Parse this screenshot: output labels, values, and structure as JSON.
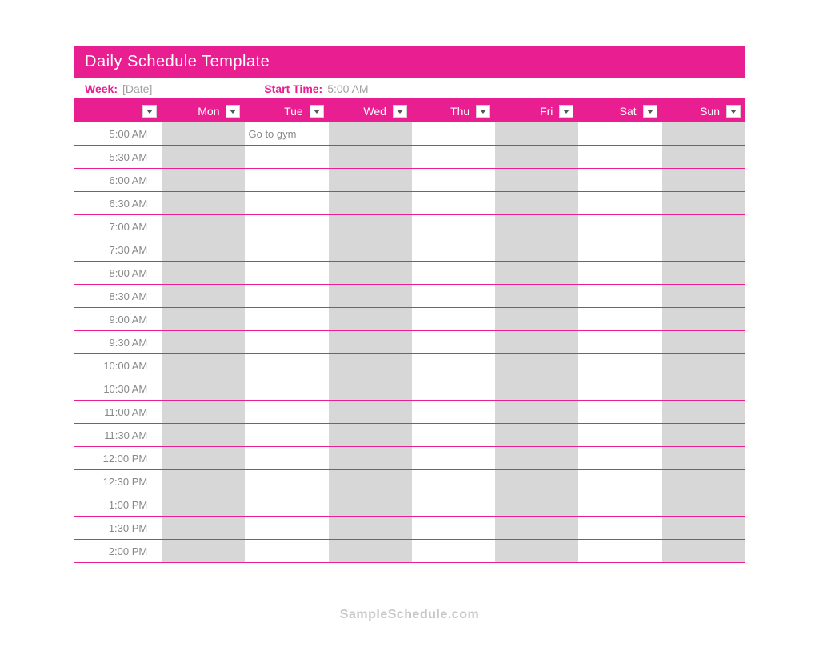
{
  "title": "Daily Schedule Template",
  "meta": {
    "week_label": "Week:",
    "week_value": "[Date]",
    "start_label": "Start Time:",
    "start_value": "5:00 AM"
  },
  "colors": {
    "accent": "#e91e90",
    "shade": "#d7d7d7",
    "text_muted": "#888888",
    "background": "#ffffff"
  },
  "columns": [
    "",
    "Mon",
    "Tue",
    "Wed",
    "Thu",
    "Fri",
    "Sat",
    "Sun"
  ],
  "shaded_columns": [
    1,
    3,
    5,
    7
  ],
  "times": [
    "5:00 AM",
    "5:30 AM",
    "6:00 AM",
    "6:30 AM",
    "7:00 AM",
    "7:30 AM",
    "8:00 AM",
    "8:30 AM",
    "9:00 AM",
    "9:30 AM",
    "10:00 AM",
    "10:30 AM",
    "11:00 AM",
    "11:30 AM",
    "12:00 PM",
    "12:30 PM",
    "1:00 PM",
    "1:30 PM",
    "2:00 PM"
  ],
  "entries": {
    "0": {
      "2": "Go to gym"
    }
  },
  "watermark": "SampleSchedule.com"
}
